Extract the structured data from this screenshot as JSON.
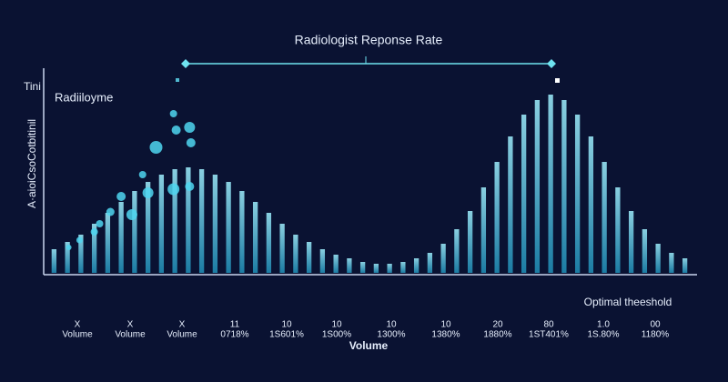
{
  "chart_data": {
    "type": "bar",
    "title": "Radiologist Reponse Rate",
    "subtitle": "Radiiloyme",
    "y_label": "A·aioiCsoCotbitinil",
    "y_unit": "Tini",
    "x_label": "Volume",
    "annotation": "Optimal theeshold",
    "x_tick_labels": [
      [
        "X",
        "Volume"
      ],
      [
        "X",
        "Volume"
      ],
      [
        "X",
        "Volume"
      ],
      [
        "11",
        "0718%"
      ],
      [
        "10",
        "1S601%"
      ],
      [
        "10",
        "1S00%"
      ],
      [
        "10",
        "1300%"
      ],
      [
        "10",
        "1380%"
      ],
      [
        "20",
        "1880%"
      ],
      [
        "80",
        "1ST401%"
      ],
      [
        "1.0",
        "1S.80%"
      ],
      [
        "00",
        "1180%"
      ]
    ],
    "categories": [
      null,
      null,
      null,
      null,
      null,
      null,
      null,
      null,
      null,
      null,
      null,
      null,
      null,
      null,
      null,
      null,
      null,
      null,
      null,
      null,
      null,
      null,
      null,
      null,
      null,
      null,
      null,
      null,
      null,
      null,
      null,
      null,
      null,
      null,
      null,
      null,
      null,
      null,
      null,
      null,
      null,
      null,
      null,
      null,
      null,
      null,
      null,
      null
    ],
    "values": [
      13,
      17,
      21,
      27,
      33,
      39,
      45,
      50,
      54,
      57,
      58,
      57,
      54,
      50,
      45,
      39,
      33,
      27,
      21,
      17,
      13,
      10,
      8,
      6,
      5,
      5,
      6,
      8,
      11,
      16,
      24,
      34,
      47,
      61,
      75,
      87,
      95,
      98,
      95,
      87,
      75,
      61,
      47,
      34,
      24,
      16,
      11,
      8
    ],
    "color": "#3fcfe6",
    "ylim": [
      0,
      100
    ],
    "xlim": [
      0,
      48
    ],
    "points": {
      "color": "#4fd6f0",
      "x": [
        1.6,
        2.4,
        3.5,
        3.9,
        4.7,
        5.5,
        6.3,
        7.1,
        7.5,
        8.1,
        9.4,
        9.6,
        10.6,
        10.7,
        10.6,
        9.4
      ],
      "y": [
        14,
        18,
        22.5,
        27,
        33.5,
        42,
        32,
        54,
        44,
        69,
        46,
        78.5,
        80,
        71.5,
        47.5,
        87.5
      ],
      "size": [
        3,
        3.5,
        4,
        4,
        4.5,
        5,
        6,
        4,
        6,
        7,
        6.5,
        5,
        6,
        5,
        5,
        4
      ]
    }
  }
}
